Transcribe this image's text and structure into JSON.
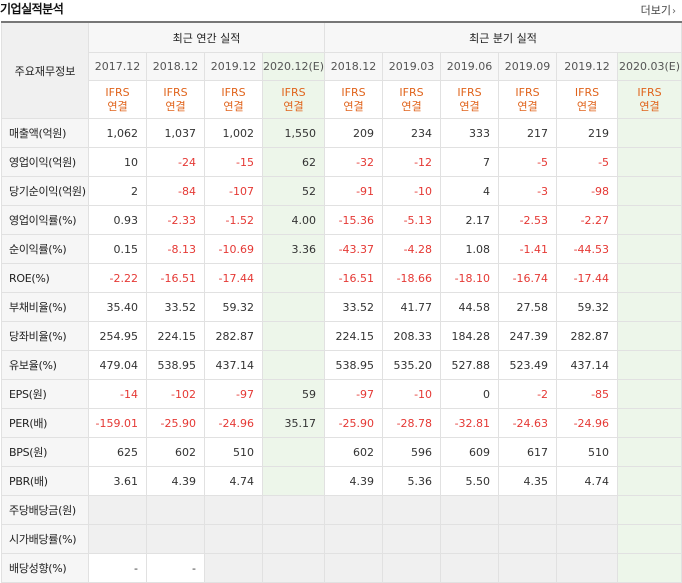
{
  "section_title": "기업실적분석",
  "more_label": "더보기",
  "corner_label": "주요재무정보",
  "annual_header": "최근 연간 실적",
  "quarterly_header": "최근 분기 실적",
  "periods": [
    "2017.12",
    "2018.12",
    "2019.12",
    "2020.12(E)",
    "2018.12",
    "2019.03",
    "2019.06",
    "2019.09",
    "2019.12",
    "2020.03(E)"
  ],
  "accounting_line1": "IFRS",
  "accounting_line2": "연결",
  "rows": [
    {
      "label": "매출액(억원)",
      "values": [
        "1,062",
        "1,037",
        "1,002",
        "1,550",
        "209",
        "234",
        "333",
        "217",
        "219",
        ""
      ]
    },
    {
      "label": "영업이익(억원)",
      "values": [
        "10",
        "-24",
        "-15",
        "62",
        "-32",
        "-12",
        "7",
        "-5",
        "-5",
        ""
      ]
    },
    {
      "label": "당기순이익(억원)",
      "values": [
        "2",
        "-84",
        "-107",
        "52",
        "-91",
        "-10",
        "4",
        "-3",
        "-98",
        ""
      ]
    },
    {
      "label": "영업이익률(%)",
      "values": [
        "0.93",
        "-2.33",
        "-1.52",
        "4.00",
        "-15.36",
        "-5.13",
        "2.17",
        "-2.53",
        "-2.27",
        ""
      ]
    },
    {
      "label": "순이익률(%)",
      "values": [
        "0.15",
        "-8.13",
        "-10.69",
        "3.36",
        "-43.37",
        "-4.28",
        "1.08",
        "-1.41",
        "-44.53",
        ""
      ]
    },
    {
      "label": "ROE(%)",
      "values": [
        "-2.22",
        "-16.51",
        "-17.44",
        "",
        "-16.51",
        "-18.66",
        "-18.10",
        "-16.74",
        "-17.44",
        ""
      ]
    },
    {
      "label": "부채비율(%)",
      "values": [
        "35.40",
        "33.52",
        "59.32",
        "",
        "33.52",
        "41.77",
        "44.58",
        "27.58",
        "59.32",
        ""
      ]
    },
    {
      "label": "당좌비율(%)",
      "values": [
        "254.95",
        "224.15",
        "282.87",
        "",
        "224.15",
        "208.33",
        "184.28",
        "247.39",
        "282.87",
        ""
      ]
    },
    {
      "label": "유보율(%)",
      "values": [
        "479.04",
        "538.95",
        "437.14",
        "",
        "538.95",
        "535.20",
        "527.88",
        "523.49",
        "437.14",
        ""
      ]
    },
    {
      "label": "EPS(원)",
      "values": [
        "-14",
        "-102",
        "-97",
        "59",
        "-97",
        "-10",
        "0",
        "-2",
        "-85",
        ""
      ]
    },
    {
      "label": "PER(배)",
      "values": [
        "-159.01",
        "-25.90",
        "-24.96",
        "35.17",
        "-25.90",
        "-28.78",
        "-32.81",
        "-24.63",
        "-24.96",
        ""
      ]
    },
    {
      "label": "BPS(원)",
      "values": [
        "625",
        "602",
        "510",
        "",
        "602",
        "596",
        "609",
        "617",
        "510",
        ""
      ]
    },
    {
      "label": "PBR(배)",
      "values": [
        "3.61",
        "4.39",
        "4.74",
        "",
        "4.39",
        "5.36",
        "5.50",
        "4.35",
        "4.74",
        ""
      ]
    },
    {
      "label": "주당배당금(원)",
      "values": [
        "",
        "",
        "",
        "",
        "",
        "",
        "",
        "",
        "",
        ""
      ]
    },
    {
      "label": "시가배당률(%)",
      "values": [
        "",
        "",
        "",
        "",
        "",
        "",
        "",
        "",
        "",
        ""
      ]
    },
    {
      "label": "배당성향(%)",
      "values": [
        "-",
        "-",
        "",
        "",
        "",
        "",
        "",
        "",
        "",
        ""
      ]
    }
  ]
}
